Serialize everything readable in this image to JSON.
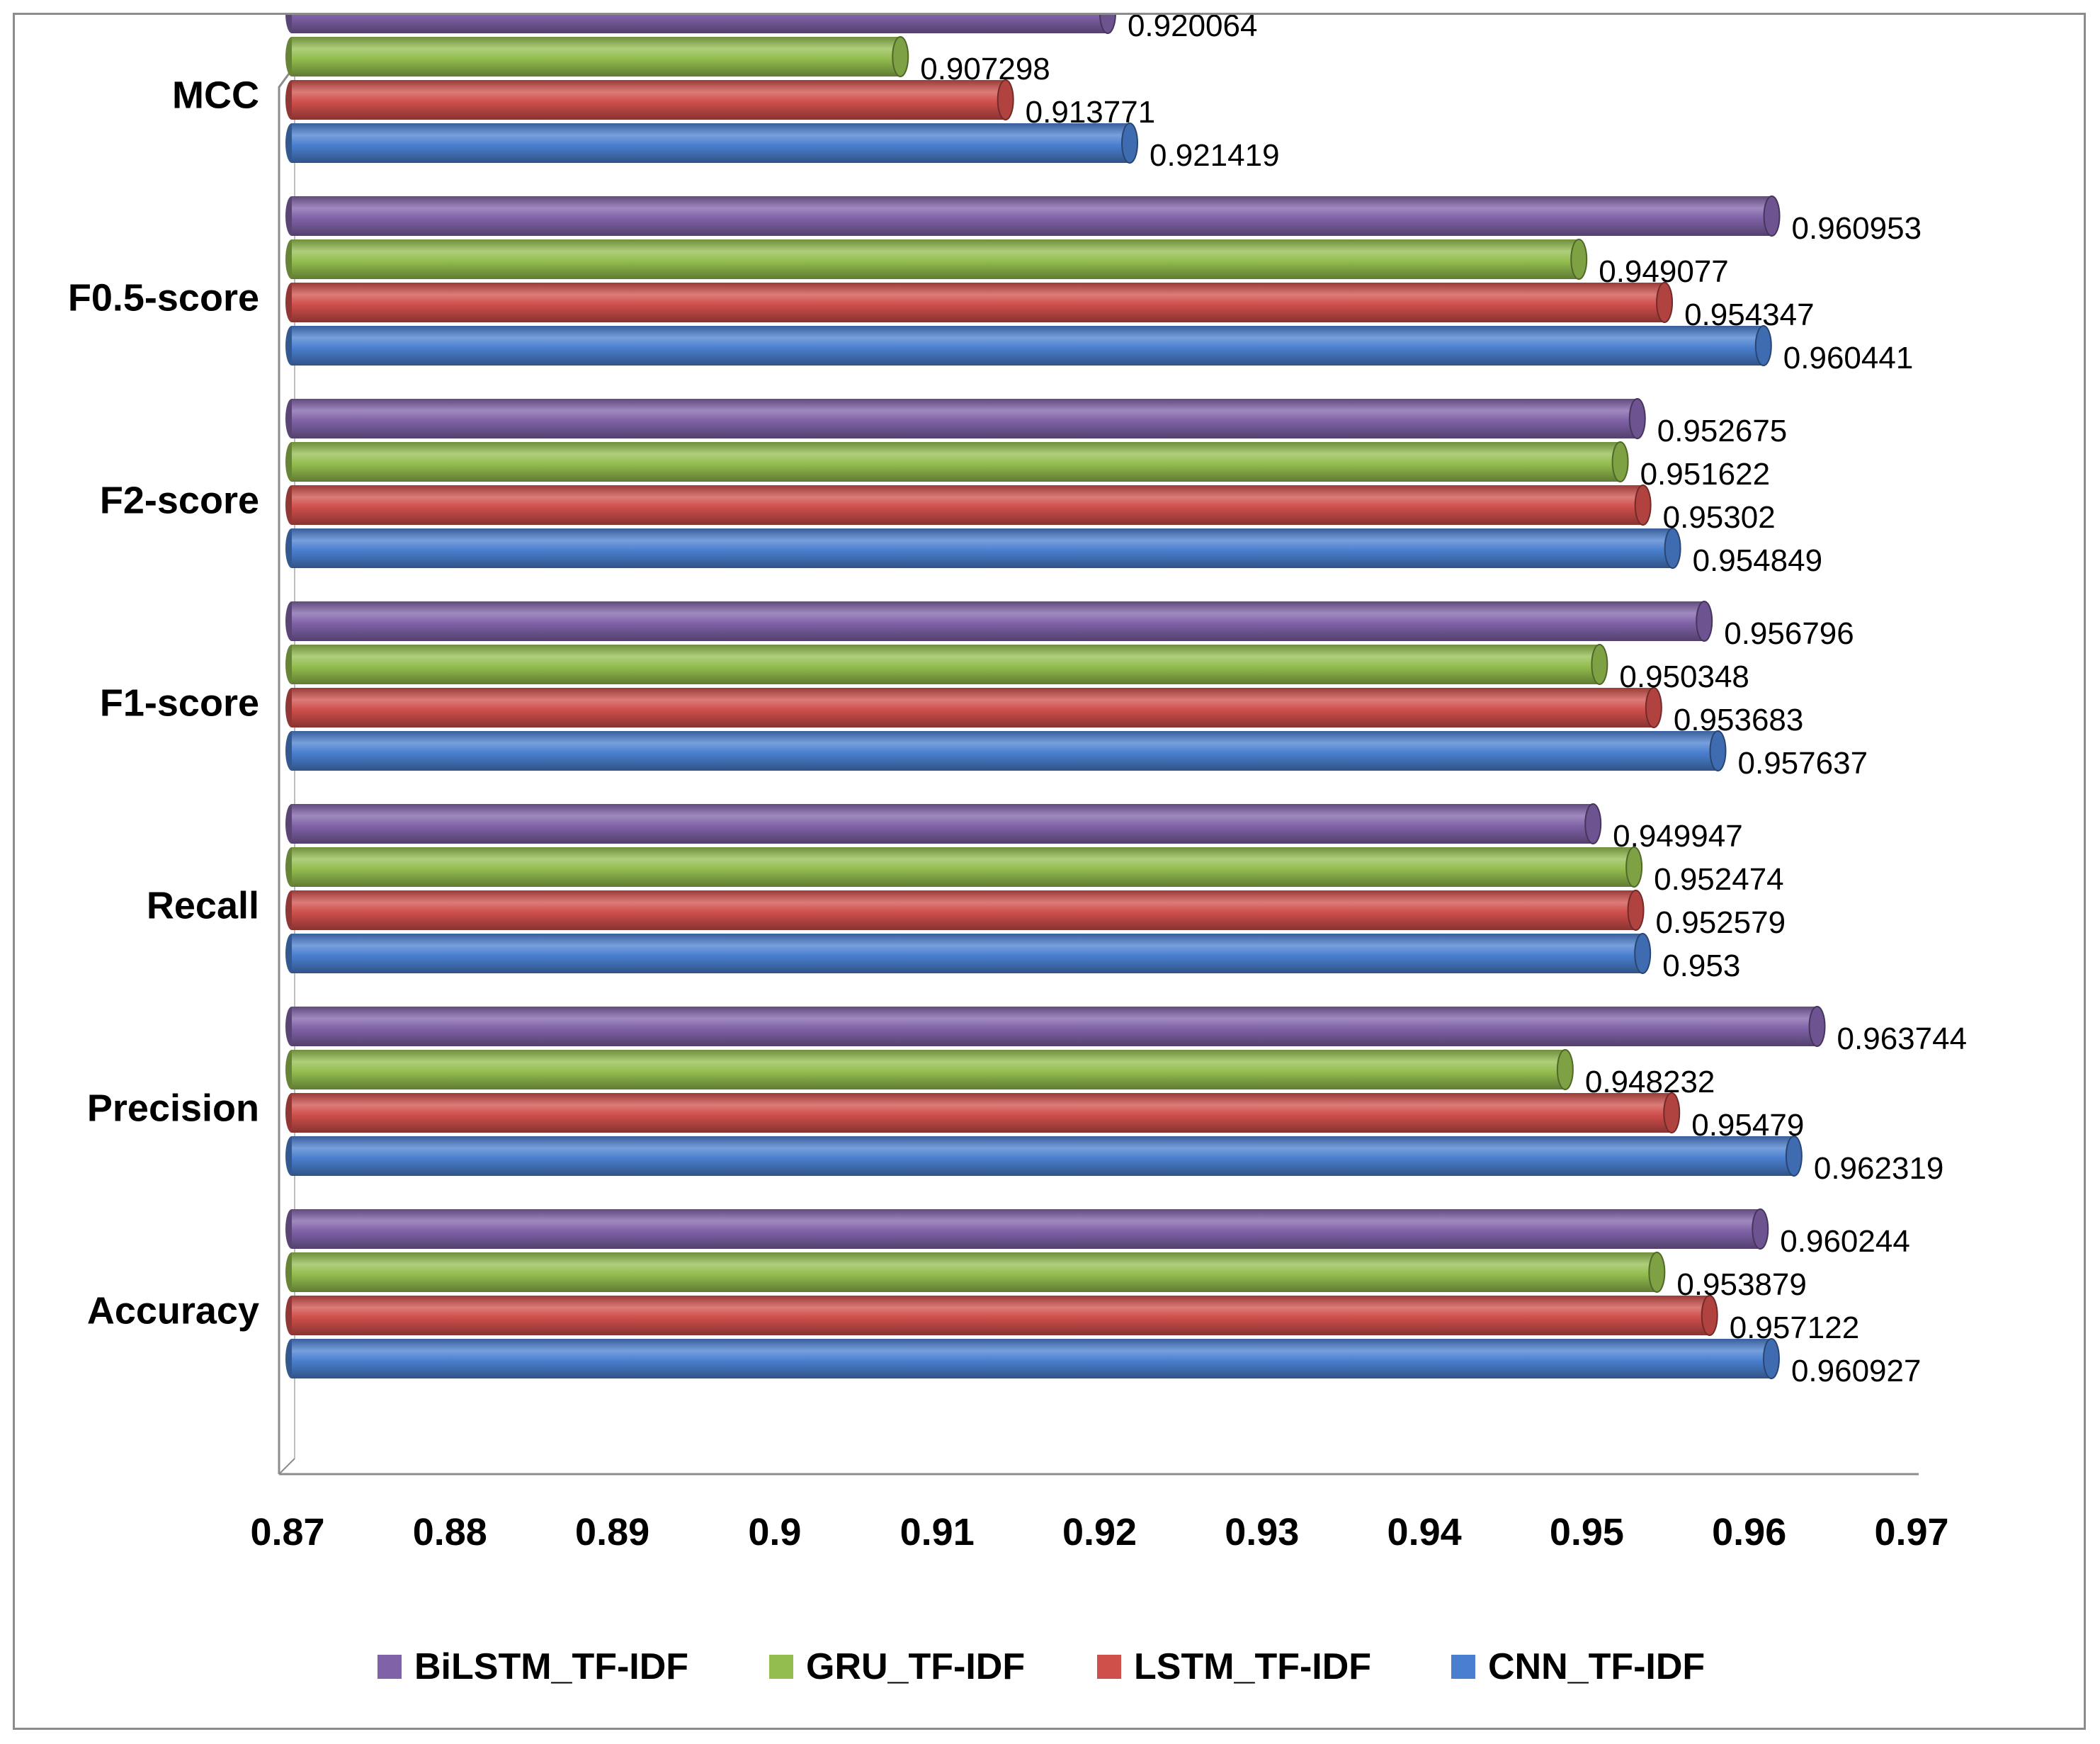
{
  "chart_data": {
    "type": "bar",
    "orientation": "horizontal",
    "title": "",
    "xlabel": "",
    "ylabel": "",
    "xlim": [
      0.87,
      0.97
    ],
    "x_ticks": [
      "0.87",
      "0.88",
      "0.89",
      "0.9",
      "0.91",
      "0.92",
      "0.93",
      "0.94",
      "0.95",
      "0.96",
      "0.97"
    ],
    "categories": [
      "Accuracy",
      "Precision",
      "Recall",
      "F1-score",
      "F2-score",
      "F0.5-score",
      "MCC"
    ],
    "series": [
      {
        "name": "CNN_TF-IDF",
        "color": "#4a7fcf",
        "values": [
          0.960927,
          0.962319,
          0.953,
          0.957637,
          0.954849,
          0.960441,
          0.921419
        ],
        "labels": [
          "0.960927",
          "0.962319",
          "0.953",
          "0.957637",
          "0.954849",
          "0.960441",
          "0.921419"
        ]
      },
      {
        "name": "LSTM_TF-IDF",
        "color": "#cf4f4b",
        "values": [
          0.957122,
          0.95479,
          0.952579,
          0.953683,
          0.95302,
          0.954347,
          0.913771
        ],
        "labels": [
          "0.957122",
          "0.95479",
          "0.952579",
          "0.953683",
          "0.95302",
          "0.954347",
          "0.913771"
        ]
      },
      {
        "name": "GRU_TF-IDF",
        "color": "#93bd4f",
        "values": [
          0.953879,
          0.948232,
          0.952474,
          0.950348,
          0.951622,
          0.949077,
          0.907298
        ],
        "labels": [
          "0.953879",
          "0.948232",
          "0.952474",
          "0.950348",
          "0.951622",
          "0.949077",
          "0.907298"
        ]
      },
      {
        "name": "BiLSTM_TF-IDF",
        "color": "#8062a8",
        "values": [
          0.960244,
          0.963744,
          0.949947,
          0.956796,
          0.952675,
          0.960953,
          0.920064
        ],
        "labels": [
          "0.960244",
          "0.963744",
          "0.949947",
          "0.956796",
          "0.952675",
          "0.960953",
          "0.920064"
        ]
      }
    ],
    "legend": {
      "position": "bottom",
      "order": [
        "BiLSTM_TF-IDF",
        "GRU_TF-IDF",
        "LSTM_TF-IDF",
        "CNN_TF-IDF"
      ]
    },
    "grid": false
  }
}
